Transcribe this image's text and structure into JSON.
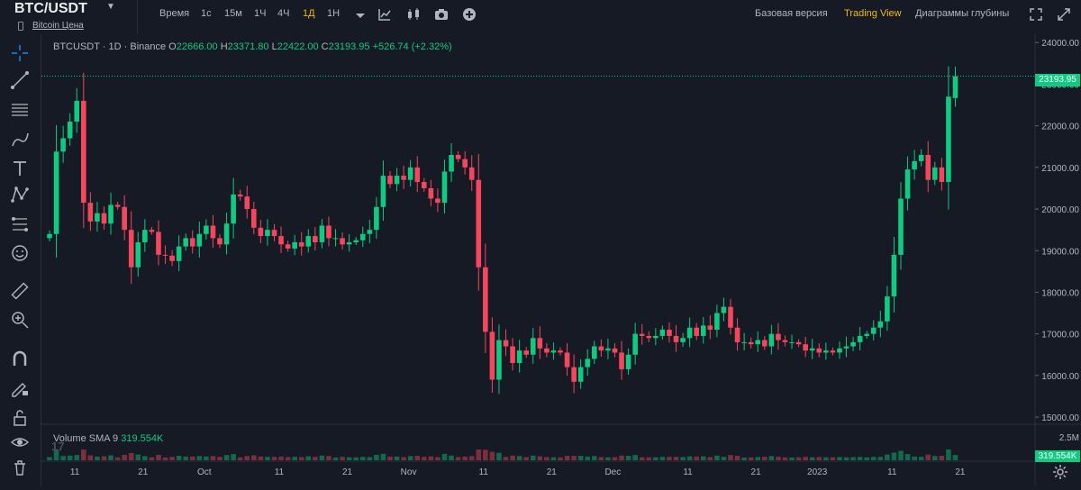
{
  "header": {
    "symbol": "BTC/USDT",
    "sublink": "Bitcoin Цена",
    "timeframes": [
      {
        "label": "Время",
        "active": false
      },
      {
        "label": "1с",
        "active": false
      },
      {
        "label": "15м",
        "active": false
      },
      {
        "label": "1Ч",
        "active": false
      },
      {
        "label": "4Ч",
        "active": false
      },
      {
        "label": "1Д",
        "active": true
      },
      {
        "label": "1Н",
        "active": false
      }
    ],
    "tools": [
      "chevron-down-icon",
      "indicators-icon",
      "candles-icon",
      "camera-icon",
      "add-icon"
    ],
    "views": [
      {
        "label": "Базовая версия",
        "active": false
      },
      {
        "label": "Trading View",
        "active": true
      },
      {
        "label": "Диаграммы глубины",
        "active": false
      }
    ],
    "right_icons": [
      "fullscreen-icon",
      "collapse-icon"
    ]
  },
  "left_tools": [
    "crosshair-icon",
    "trendline-icon",
    "horizontal-lines-icon",
    "brush-icon",
    "text-icon",
    "pattern-icon",
    "fib-icon",
    "emoji-icon",
    "ruler-icon",
    "zoom-in-icon",
    "magnet-icon",
    "pencil-lock-icon",
    "lock-icon",
    "eye-icon",
    "trash-icon"
  ],
  "legend": {
    "name": "BTCUSDT · 1D · Binance",
    "o_label": "O",
    "o": "22666.00",
    "h_label": "H",
    "h": "23371.80",
    "l_label": "L",
    "l": "22422.00",
    "c_label": "C",
    "c": "23193.95",
    "change": "+526.74 (+2.32%)"
  },
  "volume_legend": {
    "label": "Volume SMA 9",
    "value": "319.554K"
  },
  "price_tag": "23193.95",
  "volume_tag": "319.554K",
  "volume_axis_label": "2.5M",
  "logo_text": "17",
  "colors": {
    "up": "#0ecb81",
    "down": "#f6465d",
    "accent": "#f0b90b",
    "bg": "#161a25"
  },
  "chart_data": {
    "type": "candlestick",
    "y_ticks": [
      "24000.00",
      "23000.00",
      "22000.00",
      "21000.00",
      "20000.00",
      "19000.00",
      "18000.00",
      "17000.00",
      "16000.00",
      "15000.00"
    ],
    "y_tick_values": [
      24000,
      23000,
      22000,
      21000,
      20000,
      19000,
      18000,
      17000,
      16000,
      15000
    ],
    "x_ticks": [
      "11",
      "21",
      "Oct",
      "11",
      "21",
      "Nov",
      "11",
      "21",
      "Dec",
      "11",
      "21",
      "2023",
      "11",
      "21"
    ],
    "x_tick_index": [
      2,
      12,
      21,
      32,
      42,
      51,
      62,
      72,
      81,
      92,
      102,
      111,
      122,
      132
    ],
    "ylim": [
      14850,
      24200
    ],
    "last_price": 23193.95,
    "closes": [
      19400,
      21380,
      21700,
      22100,
      22600,
      20150,
      19700,
      19900,
      19650,
      20100,
      20050,
      19500,
      18600,
      19200,
      19500,
      19450,
      18900,
      18880,
      18750,
      19100,
      19300,
      19100,
      19400,
      19600,
      19300,
      19150,
      19650,
      20350,
      20300,
      20000,
      19550,
      19350,
      19500,
      19350,
      19150,
      19050,
      19200,
      19100,
      19350,
      19200,
      19600,
      19300,
      19300,
      19150,
      19200,
      19250,
      19400,
      19500,
      20050,
      20800,
      20600,
      20800,
      20700,
      21000,
      20650,
      20500,
      20250,
      20150,
      20900,
      21300,
      21200,
      21000,
      20700,
      18600,
      17050,
      15900,
      16850,
      16700,
      16300,
      16600,
      16500,
      16900,
      16650,
      16550,
      16600,
      16550,
      16200,
      15850,
      16200,
      16400,
      16700,
      16600,
      16650,
      16550,
      16150,
      16500,
      17000,
      16950,
      16900,
      16950,
      17100,
      16950,
      16800,
      16900,
      17150,
      16950,
      17200,
      17100,
      17500,
      17650,
      17150,
      16800,
      16800,
      16750,
      16850,
      16700,
      17000,
      16850,
      16800,
      16800,
      16750,
      16600,
      16650,
      16550,
      16600,
      16550,
      16650,
      16700,
      16800,
      16950,
      17000,
      17150,
      17300,
      17900,
      18900,
      20250,
      20950,
      21150,
      21300,
      20700,
      21000,
      20650,
      22700,
      23190
    ]
  }
}
